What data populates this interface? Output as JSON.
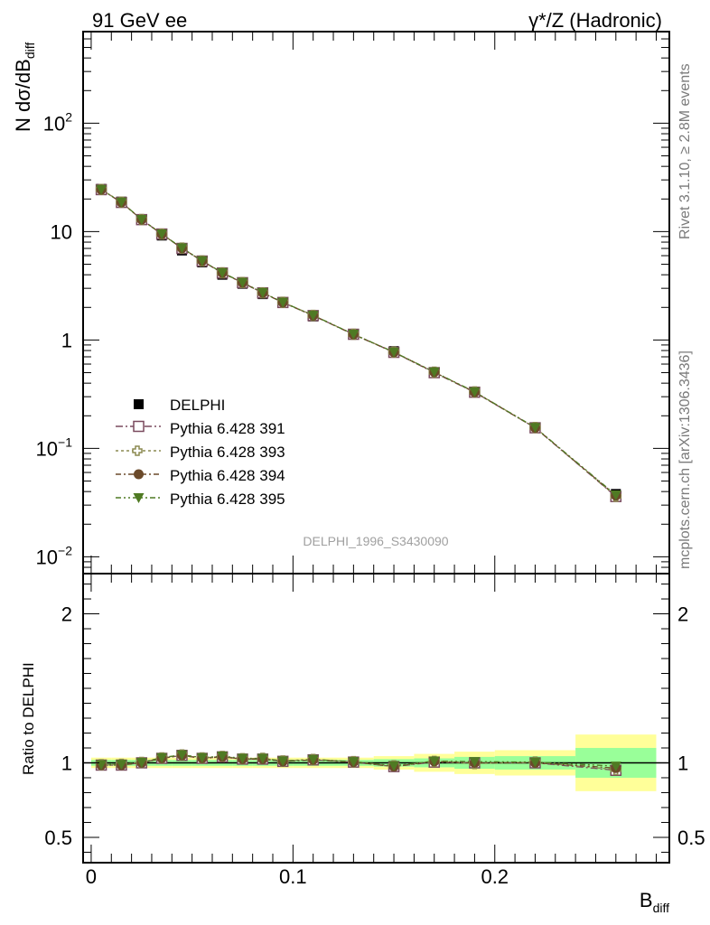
{
  "header": {
    "left": "91 GeV ee",
    "right": "γ*/Z (Hadronic)"
  },
  "side_text": {
    "rivet": "Rivet 3.1.10, ≥ 2.8M events",
    "mcplots": "mcplots.cern.ch [arXiv:1306.3436]"
  },
  "watermark": "DELPHI_1996_S3430090",
  "axes": {
    "ylabel_top": "N dσ/dB",
    "ylabel_top_sub": "diff",
    "ylabel_bottom": "Ratio to DELPHI",
    "xlabel": "B",
    "xlabel_sub": "diff"
  },
  "legend": {
    "items": [
      {
        "label": "DELPHI"
      },
      {
        "label": "Pythia 6.428 391"
      },
      {
        "label": "Pythia 6.428 393"
      },
      {
        "label": "Pythia 6.428 394"
      },
      {
        "label": "Pythia 6.428 395"
      }
    ]
  },
  "colors": {
    "data": "#000000",
    "mc391": "#7a4a5e",
    "mc393": "#8c8a50",
    "mc394": "#6b4a2a",
    "mc395": "#4f7a23",
    "band_yellow": "#ffff99",
    "band_green": "#99ff99"
  },
  "chart_data": {
    "type": "scatter",
    "x": [
      0.005,
      0.015,
      0.025,
      0.035,
      0.045,
      0.055,
      0.065,
      0.075,
      0.085,
      0.095,
      0.11,
      0.13,
      0.15,
      0.17,
      0.19,
      0.22,
      0.26
    ],
    "xlim": [
      -0.004,
      0.2865
    ],
    "x_ticks": [
      {
        "value": 0,
        "label": "0"
      },
      {
        "value": 0.1,
        "label": "0.1"
      },
      {
        "value": 0.2,
        "label": "0.2"
      }
    ],
    "top": {
      "scale": "log",
      "ylim": [
        0.007,
        700
      ],
      "y_ticks": [
        {
          "value": 0.01,
          "base": "10",
          "exp": "−2"
        },
        {
          "value": 0.1,
          "base": "10",
          "exp": "−1"
        },
        {
          "value": 1,
          "base": "1",
          "exp": ""
        },
        {
          "value": 10,
          "base": "10",
          "exp": ""
        },
        {
          "value": 100,
          "base": "10",
          "exp": "2"
        }
      ],
      "data": [
        24.8,
        18.9,
        12.9,
        9.2,
        6.7,
        5.2,
        4.0,
        3.3,
        2.65,
        2.2,
        1.65,
        1.12,
        0.79,
        0.5,
        0.33,
        0.155,
        0.038
      ],
      "series": [
        {
          "name": "Pythia 6.428 391",
          "values": [
            24.4,
            18.6,
            12.9,
            9.5,
            7.0,
            5.35,
            4.15,
            3.38,
            2.72,
            2.22,
            1.68,
            1.13,
            0.77,
            0.5,
            0.33,
            0.155,
            0.036
          ]
        },
        {
          "name": "Pythia 6.428 393",
          "values": [
            24.5,
            18.7,
            12.95,
            9.5,
            7.05,
            5.37,
            4.17,
            3.39,
            2.73,
            2.23,
            1.69,
            1.13,
            0.775,
            0.505,
            0.332,
            0.156,
            0.0362
          ]
        },
        {
          "name": "Pythia 6.428 394",
          "values": [
            24.4,
            18.6,
            12.9,
            9.48,
            7.04,
            5.36,
            4.16,
            3.38,
            2.72,
            2.22,
            1.68,
            1.125,
            0.77,
            0.505,
            0.33,
            0.155,
            0.0367
          ]
        },
        {
          "name": "Pythia 6.428 395",
          "values": [
            24.5,
            18.7,
            12.95,
            9.52,
            7.06,
            5.38,
            4.18,
            3.4,
            2.74,
            2.23,
            1.69,
            1.13,
            0.775,
            0.507,
            0.333,
            0.156,
            0.0372
          ]
        }
      ]
    },
    "bottom": {
      "ylim": [
        0.33,
        2.27
      ],
      "y_ticks": [
        0.5,
        1,
        2
      ],
      "bins": [
        {
          "lo": 0.0,
          "hi": 0.01,
          "yellow": 0.035,
          "green": 0.02
        },
        {
          "lo": 0.01,
          "hi": 0.02,
          "yellow": 0.035,
          "green": 0.02
        },
        {
          "lo": 0.02,
          "hi": 0.03,
          "yellow": 0.035,
          "green": 0.02
        },
        {
          "lo": 0.03,
          "hi": 0.04,
          "yellow": 0.035,
          "green": 0.02
        },
        {
          "lo": 0.04,
          "hi": 0.05,
          "yellow": 0.035,
          "green": 0.02
        },
        {
          "lo": 0.05,
          "hi": 0.06,
          "yellow": 0.035,
          "green": 0.02
        },
        {
          "lo": 0.06,
          "hi": 0.07,
          "yellow": 0.035,
          "green": 0.02
        },
        {
          "lo": 0.07,
          "hi": 0.08,
          "yellow": 0.035,
          "green": 0.02
        },
        {
          "lo": 0.08,
          "hi": 0.09,
          "yellow": 0.035,
          "green": 0.02
        },
        {
          "lo": 0.09,
          "hi": 0.1,
          "yellow": 0.035,
          "green": 0.02
        },
        {
          "lo": 0.1,
          "hi": 0.12,
          "yellow": 0.035,
          "green": 0.02
        },
        {
          "lo": 0.12,
          "hi": 0.14,
          "yellow": 0.035,
          "green": 0.02
        },
        {
          "lo": 0.14,
          "hi": 0.16,
          "yellow": 0.045,
          "green": 0.025
        },
        {
          "lo": 0.16,
          "hi": 0.18,
          "yellow": 0.06,
          "green": 0.03
        },
        {
          "lo": 0.18,
          "hi": 0.2,
          "yellow": 0.075,
          "green": 0.04
        },
        {
          "lo": 0.2,
          "hi": 0.24,
          "yellow": 0.085,
          "green": 0.045
        },
        {
          "lo": 0.24,
          "hi": 0.28,
          "yellow": 0.19,
          "green": 0.1
        }
      ],
      "series": [
        {
          "name": "Pythia 6.428 391",
          "values": [
            0.985,
            0.985,
            1.0,
            1.03,
            1.05,
            1.03,
            1.04,
            1.025,
            1.025,
            1.01,
            1.02,
            1.005,
            0.975,
            1.005,
            1.0,
            1.0,
            0.95
          ]
        },
        {
          "name": "Pythia 6.428 393",
          "values": [
            0.988,
            0.99,
            1.003,
            1.033,
            1.053,
            1.033,
            1.043,
            1.028,
            1.03,
            1.013,
            1.023,
            1.008,
            0.98,
            1.01,
            0.995,
            1.005,
            0.955
          ]
        },
        {
          "name": "Pythia 6.428 394",
          "values": [
            0.985,
            0.985,
            1.0,
            1.03,
            1.05,
            1.03,
            1.04,
            1.025,
            1.025,
            1.01,
            1.02,
            1.005,
            0.975,
            1.01,
            1.0,
            1.0,
            0.965
          ]
        },
        {
          "name": "Pythia 6.428 395",
          "values": [
            0.988,
            0.99,
            1.003,
            1.035,
            1.054,
            1.035,
            1.045,
            1.03,
            1.03,
            1.013,
            1.023,
            1.008,
            0.98,
            1.012,
            1.008,
            1.005,
            0.978
          ]
        }
      ]
    }
  }
}
